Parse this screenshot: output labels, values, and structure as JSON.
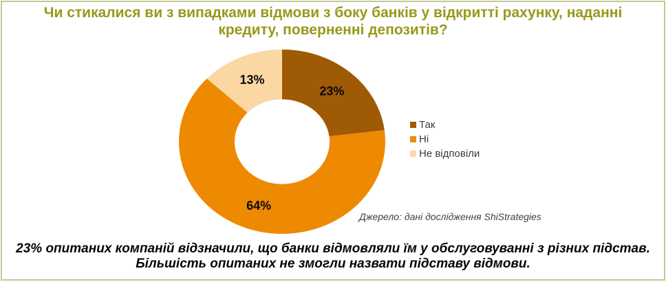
{
  "frame": {
    "border_color": "#c6c696",
    "background": "#ffffff"
  },
  "title": {
    "text": "Чи стикалися ви з випадками відмови з боку банків у відкритті рахунку, наданні кредиту, поверненні депозитів?",
    "color": "#98981a"
  },
  "chart_data": {
    "type": "pie",
    "subtype": "donut",
    "title": "Чи стикалися ви з випадками відмови з боку банків у відкритті рахунку, наданні кредиту, поверненні депозитів?",
    "categories": [
      "Так",
      "Ні",
      "Не відповіли"
    ],
    "values": [
      23,
      64,
      13
    ],
    "unit": "%",
    "data_labels": [
      "23%",
      "64%",
      "13%"
    ],
    "colors": [
      "#9f5a06",
      "#ee8a02",
      "#fbd7a3"
    ],
    "start_angle_deg": 0,
    "direction": "clockwise",
    "inner_radius_ratio": 0.46,
    "legend_position": "right",
    "grid": false
  },
  "legend": {
    "items": [
      {
        "label": "Так",
        "color": "#9f5a06"
      },
      {
        "label": "Ні",
        "color": "#ee8a02"
      },
      {
        "label": "Не відповіли",
        "color": "#fbd7a3"
      }
    ]
  },
  "source": {
    "text": "Джерело: дані дослідження ShiStrategies"
  },
  "note": {
    "lines": [
      "23% опитаних компаній відзначили, що банки відмовляли їм у обслуговуванні з різних підстав.",
      "Більшість опитаних не змогли назвати підставу відмови."
    ]
  }
}
